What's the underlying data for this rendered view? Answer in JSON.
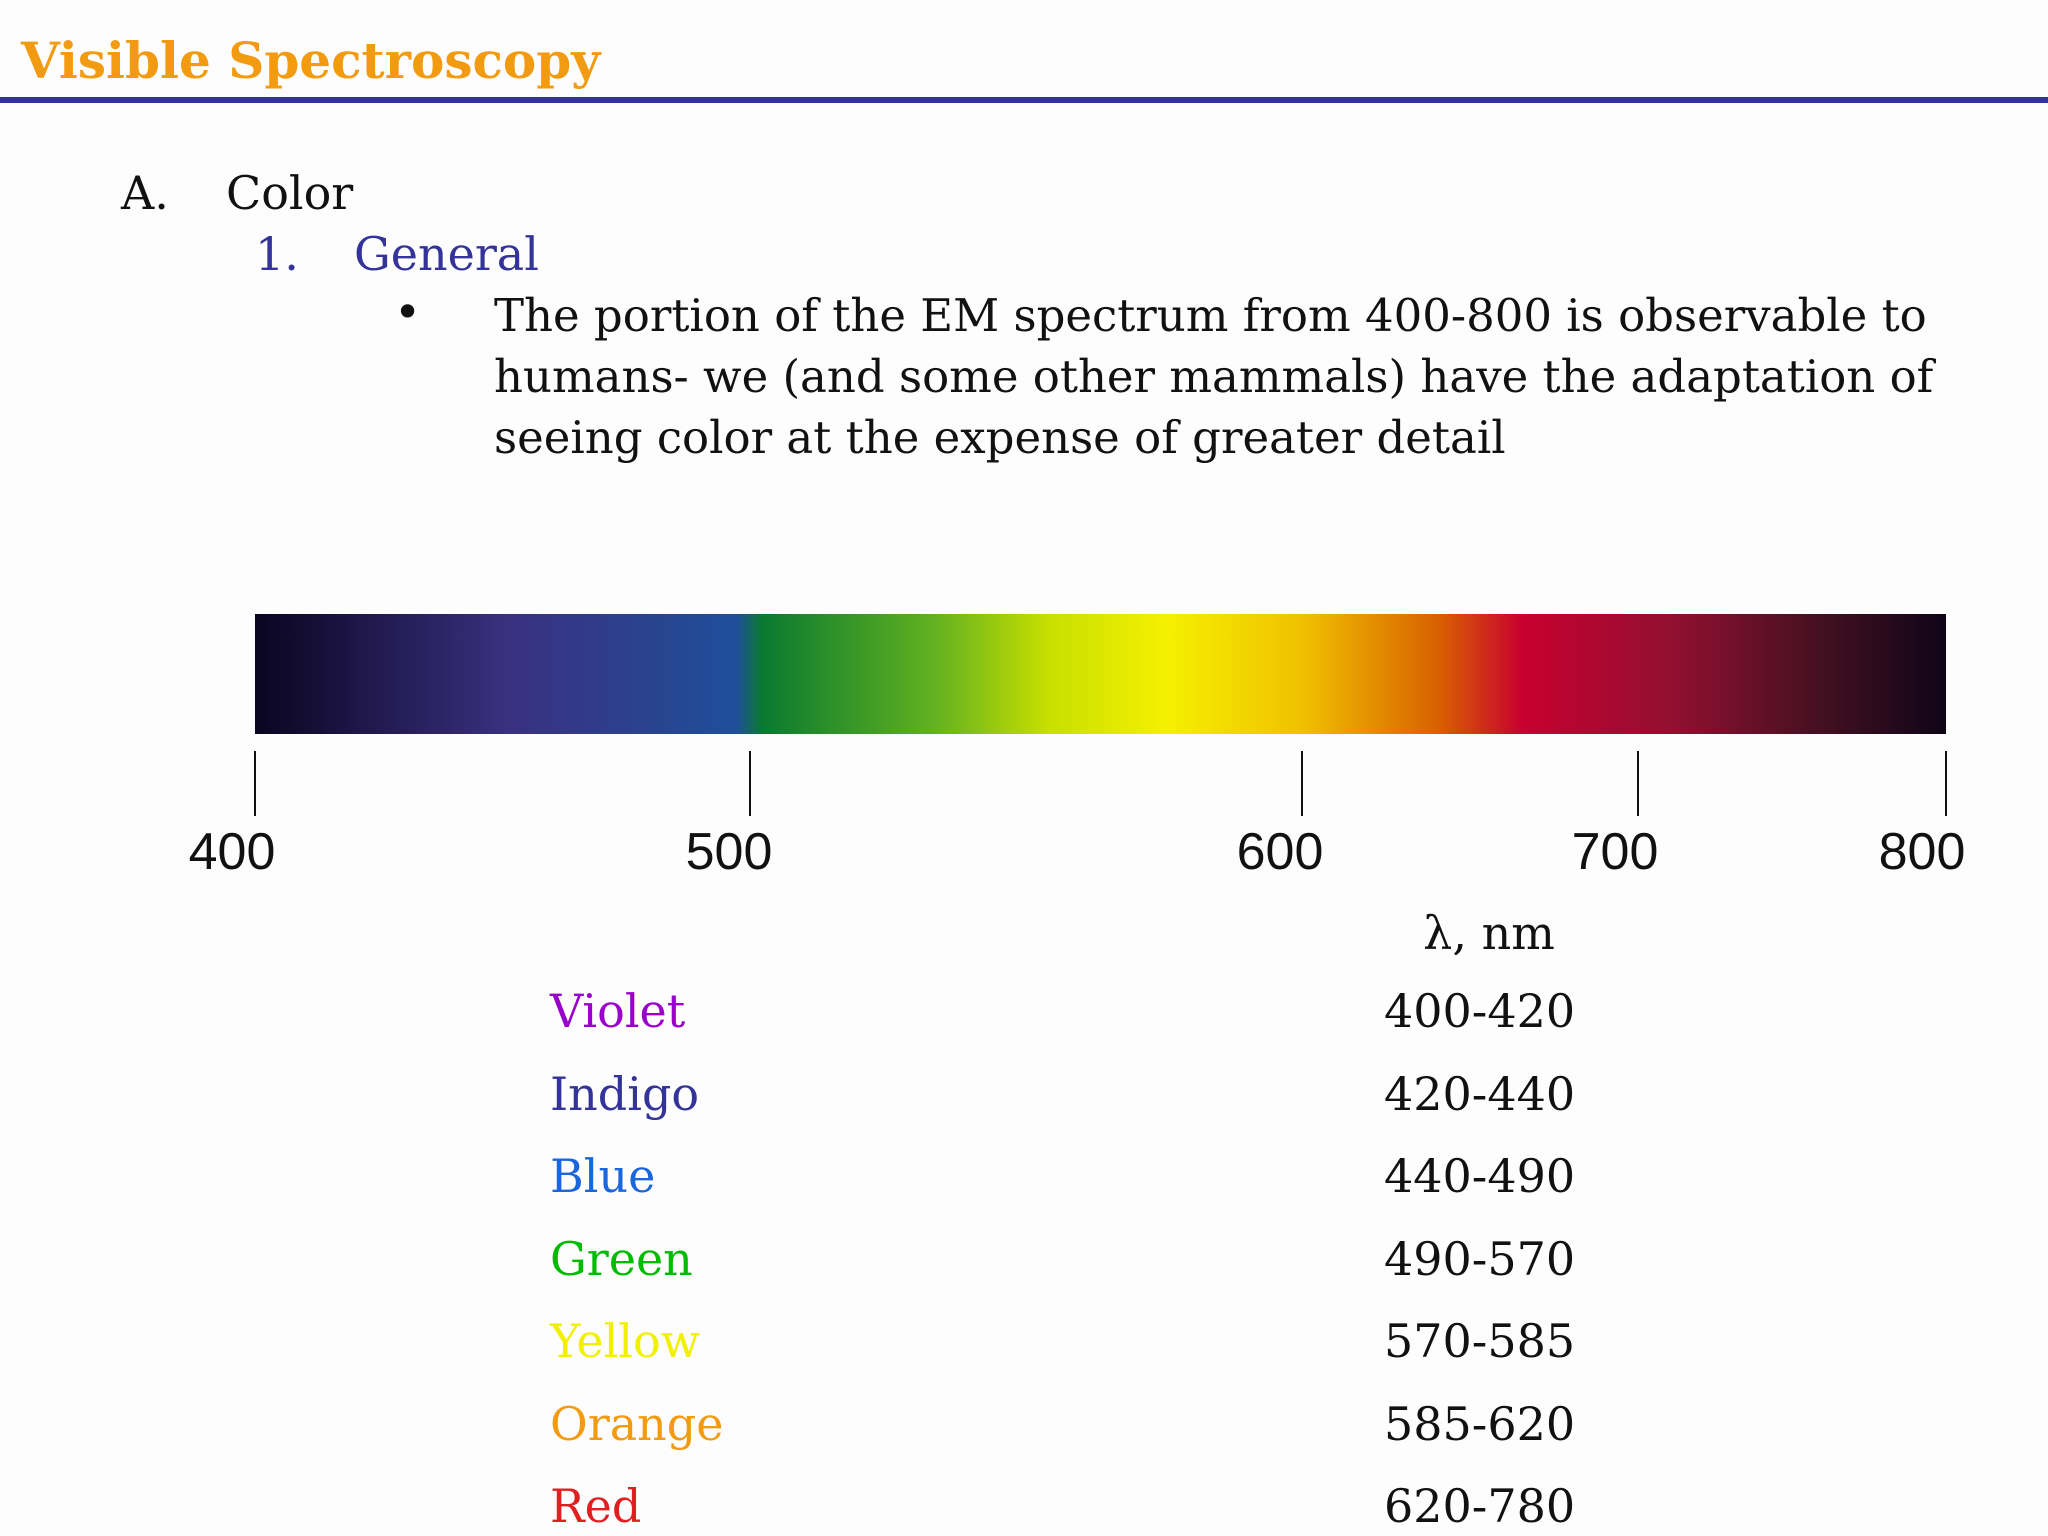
{
  "header": {
    "title": "Visible Spectroscopy"
  },
  "outline": {
    "marker": "A.",
    "text": "Color",
    "sub": {
      "marker": "1.",
      "text": "General",
      "bullet": "The portion of the EM spectrum from 400-800 is observable to humans- we (and some other mammals) have the adaptation of seeing color at the expense of greater detail"
    }
  },
  "spectrum": {
    "ticks": [
      "400",
      "500",
      "600",
      "700",
      "800"
    ]
  },
  "table": {
    "header": "λ, nm",
    "rows": [
      [
        "Violet",
        "400-420"
      ],
      [
        "Indigo",
        "420-440"
      ],
      [
        "Blue",
        "440-490"
      ],
      [
        "Green",
        "490-570"
      ],
      [
        "Yellow",
        "570-585"
      ],
      [
        "Orange",
        "585-620"
      ],
      [
        "Red",
        "620-780"
      ]
    ]
  }
}
